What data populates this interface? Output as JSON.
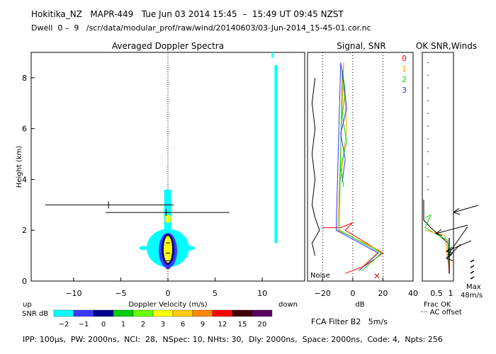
{
  "header": {
    "line1": "Hokitika_NZ   MAPR-449   Tue Jun 03 2014 15:45  –  15:49 UT 09:45 NZST",
    "line2": "Dwell  0 –  9   /scr/data/modular_prof/raw/wind/20140603/03-Jun-2014_15-45-01.cor.nc"
  },
  "footer": {
    "params": "IPP: 100µs,  PW: 2000ns,  NCI:  28,  NSpec: 10, NHts: 30,  Dly: 2000ns,  Space: 2000ns,  Code: 4,  Npts: 256",
    "fca": "FCA Filter B2   5m/s"
  },
  "colors": {
    "cyan": "#00ffff",
    "blue": "#3a3aff",
    "navy": "#000090",
    "yellow": "#ffff00",
    "green": "#00cc00",
    "orange": "#ff8800",
    "red": "#ff0000",
    "purple": "#5a0060",
    "line_red": "#ff0000",
    "line_green": "#00dd00",
    "line_orange": "#ff9900",
    "line_blue": "#3333ff"
  },
  "chart_data": [
    {
      "type": "heatmap",
      "title": "Averaged Doppler Spectra",
      "xlabel": "Doppler Velocity (m/s)",
      "ylabel": "Height (km)",
      "xlim": [
        -14.5,
        14.5
      ],
      "ylim": [
        0,
        9
      ],
      "xticks": [
        -10,
        -5,
        0,
        5,
        10
      ],
      "yticks": [
        0,
        2,
        4,
        6,
        8
      ],
      "up_label": "up",
      "down_label": "down",
      "colorbar": {
        "label": "SNR dB",
        "ticks": [
          "−2",
          "−1",
          "0",
          "1",
          "2",
          "3",
          "6",
          "9",
          "12",
          "15",
          "20"
        ],
        "colors": [
          "#00ffff",
          "#3a3aff",
          "#000090",
          "#00cc00",
          "#66ff00",
          "#ffff00",
          "#ffcc00",
          "#ff8800",
          "#ff0000",
          "#400000",
          "#5a0060"
        ]
      },
      "error_bars": [
        {
          "height": 3.0,
          "center": -6.3,
          "lo": -13.0,
          "hi": 0.6
        },
        {
          "height": 2.7,
          "center": -0.2,
          "lo": -6.6,
          "hi": 6.5
        }
      ]
    },
    {
      "type": "line",
      "title": "Signal, SNR",
      "xlabel": "dB",
      "xlim": [
        -30,
        40
      ],
      "ylim": [
        0,
        9
      ],
      "xticks": [
        -20,
        0,
        20,
        40
      ],
      "noise_label": "Noise",
      "legend": [
        "0",
        "1",
        "2",
        "3"
      ],
      "series": [
        {
          "name": "0",
          "color": "#ff0000",
          "points": [
            [
              -20,
              2.1
            ],
            [
              -8,
              2.1
            ],
            [
              0,
              2.3
            ],
            [
              -5,
              2.0
            ],
            [
              20,
              1.1
            ],
            [
              8,
              0.6
            ],
            [
              -5,
              0.3
            ]
          ]
        },
        {
          "name": "1",
          "color": "#ff9900",
          "points": [
            [
              -8,
              4.0
            ],
            [
              -6,
              5.0
            ],
            [
              -4,
              6.0
            ],
            [
              -5,
              7.0
            ],
            [
              -7,
              8.0
            ],
            [
              -6,
              8.6
            ],
            [
              -10,
              2.0
            ],
            [
              18,
              1.2
            ],
            [
              5,
              0.5
            ]
          ]
        },
        {
          "name": "2",
          "color": "#00dd00",
          "points": [
            [
              -6,
              3.7
            ],
            [
              -8,
              4.5
            ],
            [
              -4,
              5.5
            ],
            [
              -7,
              6.5
            ],
            [
              -5,
              7.5
            ],
            [
              -7,
              8.3
            ],
            [
              -9,
              2.0
            ],
            [
              19,
              1.1
            ],
            [
              6,
              0.4
            ]
          ]
        },
        {
          "name": "3",
          "color": "#3333ff",
          "points": [
            [
              -7,
              3.9
            ],
            [
              -5,
              4.8
            ],
            [
              -8,
              5.8
            ],
            [
              -4,
              6.8
            ],
            [
              -6,
              7.8
            ],
            [
              -8,
              8.6
            ],
            [
              -11,
              2.0
            ],
            [
              17,
              1.1
            ],
            [
              4,
              0.4
            ]
          ]
        },
        {
          "name": "",
          "color": "#000000",
          "points": [
            [
              -25,
              8.0
            ],
            [
              -27,
              7.0
            ],
            [
              -25,
              6.0
            ],
            [
              -27,
              5.0
            ],
            [
              -25,
              4.0
            ],
            [
              -27,
              3.0
            ],
            [
              -25,
              2.5
            ],
            [
              -22,
              2.0
            ],
            [
              -27,
              1.5
            ],
            [
              -25,
              1.0
            ]
          ]
        }
      ]
    },
    {
      "type": "scatter",
      "title": "OK SNR,Winds",
      "xlabel": "Frac OK",
      "xlim": [
        0,
        1.1
      ],
      "ylim": [
        0,
        9
      ],
      "xticks": [
        "0.5",
        "1"
      ],
      "ac_label": "··· AC offset",
      "max_label": "Max",
      "speed_label": "48m/s"
    }
  ]
}
